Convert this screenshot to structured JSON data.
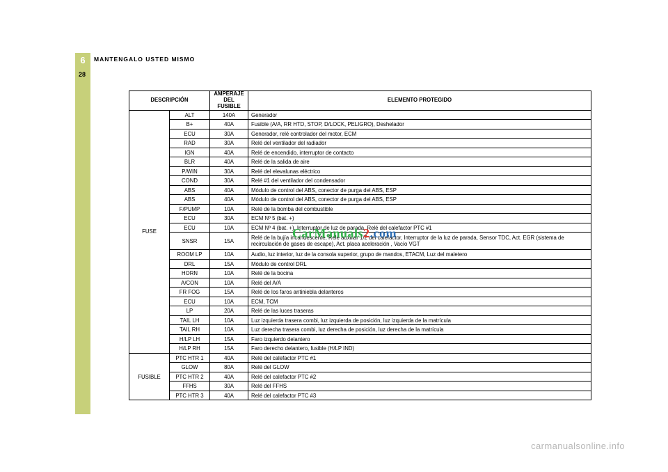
{
  "chapter": {
    "number": "6",
    "title": "MANTENGALO USTED MISMO"
  },
  "page_number": "28",
  "fuse_table": {
    "headers": {
      "description": "DESCRIPCIÓN",
      "amperage": "AMPERAJE\nDEL FUSIBLE",
      "element": "ELEMENTO PROTEGIDO"
    },
    "groups": [
      {
        "group": "FUSE",
        "rows": [
          {
            "sub": "ALT",
            "amp": "140A",
            "elem": "Generador"
          },
          {
            "sub": "B+",
            "amp": "40A",
            "elem": "Fusible (A/A, RR HTD, STOP, D/LOCK, PELIGRO), Deshelador"
          },
          {
            "sub": "ECU",
            "amp": "30A",
            "elem": "Generador, relé controlador del motor, ECM"
          },
          {
            "sub": "RAD",
            "amp": "30A",
            "elem": "Relé del ventilador del radiador"
          },
          {
            "sub": "IGN",
            "amp": "40A",
            "elem": "Relé de encendido, interruptor de contacto"
          },
          {
            "sub": "BLR",
            "amp": "40A",
            "elem": "Relé de la salida de aire"
          },
          {
            "sub": "P/WIN",
            "amp": "30A",
            "elem": "Relé del elevalunas eléctrico"
          },
          {
            "sub": "COND",
            "amp": "30A",
            "elem": "Relé #1 del ventilador del condensador"
          },
          {
            "sub": "ABS",
            "amp": "40A",
            "elem": "Módulo de control del ABS, conector de purga del ABS, ESP"
          },
          {
            "sub": "ABS",
            "amp": "40A",
            "elem": "Módulo de control del ABS, conector de purga del ABS, ESP"
          },
          {
            "sub": "F/PUMP",
            "amp": "10A",
            "elem": "Relé de la bomba del combustible"
          },
          {
            "sub": "ECU",
            "amp": "30A",
            "elem": "ECM Nº 5 (bat. +)"
          },
          {
            "sub": "ECU",
            "amp": "10A",
            "elem": "ECM Nº 4 (bat. +), Interruptor de luz de parada, Relé del calefactor PTC #1"
          },
          {
            "sub": "SNSR",
            "amp": "15A",
            "elem": "Relé de la bujía incandescente, Relé auxiliar 1/2 del calefactor, Interruptor de la luz de parada, Sensor TDC, Act. EGR (sistema de recirculación de gases de escape), Act. placa aceleración , Vacío VGT",
            "tall": true
          },
          {
            "sub": "ROOM LP",
            "amp": "10A",
            "elem": "Audio, luz interior, luz de la consola superior, grupo de mandos, ETACM, Luz del maletero"
          },
          {
            "sub": "DRL",
            "amp": "15A",
            "elem": "Módulo de control DRL"
          },
          {
            "sub": "HORN",
            "amp": "10A",
            "elem": "Relé de la bocina"
          },
          {
            "sub": "A/CON",
            "amp": "10A",
            "elem": "Relé del A/A"
          },
          {
            "sub": "FR FOG",
            "amp": "15A",
            "elem": "Relé de los faros antiniebla delanteros"
          },
          {
            "sub": "ECU",
            "amp": "10A",
            "elem": "ECM, TCM"
          },
          {
            "sub": "LP",
            "amp": "20A",
            "elem": "Relé de las luces traseras"
          },
          {
            "sub": "TAIL LH",
            "amp": "10A",
            "elem": "Luz izquierda trasera combi, luz izquierda de posición, luz izquierda de la matrícula"
          },
          {
            "sub": "TAIL RH",
            "amp": "10A",
            "elem": "Luz derecha trasera combi, luz derecha de posición, luz derecha de la matrícula"
          },
          {
            "sub": "H/LP LH",
            "amp": "15A",
            "elem": "Faro izquierdo delantero"
          },
          {
            "sub": "H/LP RH",
            "amp": "15A",
            "elem": "Faro derecho delantero, fusible (H/LP IND)"
          }
        ]
      },
      {
        "group": "FUSIBLE",
        "rows": [
          {
            "sub": "PTC HTR 1",
            "amp": "40A",
            "elem": "Relé del calefactor PTC #1"
          },
          {
            "sub": "GLOW",
            "amp": "80A",
            "elem": "Relé del GLOW"
          },
          {
            "sub": "PTC HTR 2",
            "amp": "40A",
            "elem": "Relé del calefactor PTC #2"
          },
          {
            "sub": "FFHS",
            "amp": "30A",
            "elem": "Relé del FFHS"
          },
          {
            "sub": "PTC HTR 3",
            "amp": "40A",
            "elem": "Relé del calefactor PTC #3"
          }
        ]
      }
    ]
  },
  "watermark": {
    "part1": "CarManuals",
    "part2": "2",
    "part3": ".com"
  },
  "footer": "carmanualsonline.info"
}
